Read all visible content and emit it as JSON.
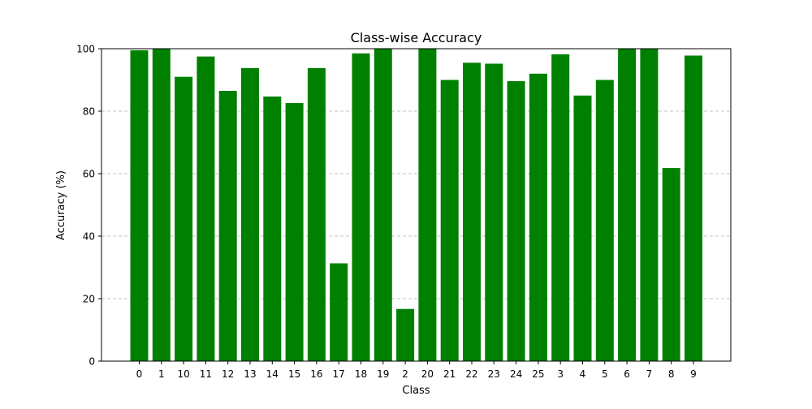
{
  "chart_data": {
    "type": "bar",
    "title": "Class-wise Accuracy",
    "xlabel": "Class",
    "ylabel": "Accuracy (%)",
    "categories": [
      "0",
      "1",
      "10",
      "11",
      "12",
      "13",
      "14",
      "15",
      "16",
      "17",
      "18",
      "19",
      "2",
      "20",
      "21",
      "22",
      "23",
      "24",
      "25",
      "3",
      "4",
      "5",
      "6",
      "7",
      "8",
      "9"
    ],
    "values": [
      99.5,
      100,
      91.0,
      97.5,
      86.5,
      93.8,
      84.7,
      82.6,
      93.8,
      31.3,
      98.5,
      100,
      16.7,
      100,
      90.0,
      95.5,
      95.2,
      89.6,
      92.0,
      98.2,
      85.0,
      90.0,
      100,
      100,
      61.8,
      97.8
    ],
    "ylim": [
      0,
      100
    ],
    "yticks": [
      0,
      20,
      40,
      60,
      80,
      100
    ],
    "grid": "y-dashed",
    "bar_color": "#008000",
    "grid_color": "#b0b0b0"
  }
}
